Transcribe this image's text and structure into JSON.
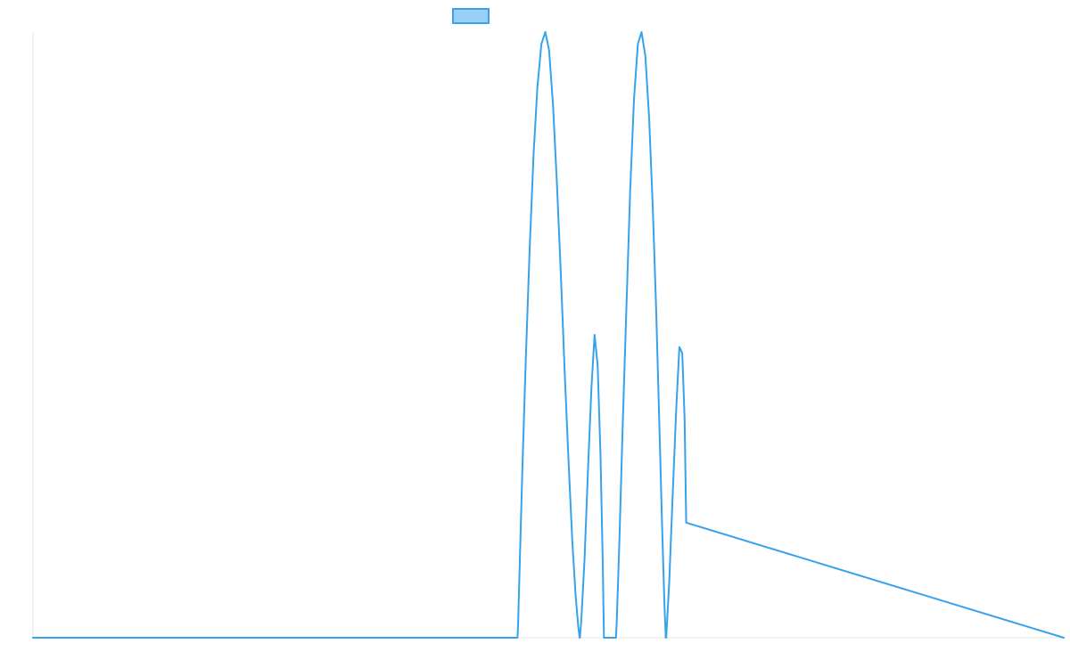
{
  "chart_data": {
    "type": "line",
    "title": "",
    "xlabel": "",
    "ylabel": "",
    "legend": {
      "placement": "top-center",
      "entries": [
        {
          "label": ""
        }
      ]
    },
    "grid": false,
    "xlim": [
      0,
      1000
    ],
    "ylim": [
      0,
      1
    ],
    "series": [
      {
        "color": "#36a2eb",
        "fill": "#9ad0f5",
        "x": [
          0,
          470,
          470.6,
          472.2,
          474.8,
          478.1,
          481.8,
          485.7,
          489.4,
          493.2,
          497.0,
          500.7,
          504.5,
          508.3,
          512.1,
          515.8,
          519.6,
          523.2,
          526.4,
          528.9,
          530.3,
          530.6,
          532.0,
          535.1,
          538.5,
          541.7,
          544.8,
          547.8,
          550.6,
          552.8,
          553.9,
          560,
          565.6,
          566.4,
          568.9,
          572.1,
          575.8,
          579.4,
          583.1,
          586.8,
          590.4,
          594.1,
          597.7,
          601.3,
          604.6,
          607.7,
          610.4,
          612.7,
          613.9,
          614.3,
          617.2,
          620.7,
          624.1,
          627.1,
          629.9,
          632.2,
          633.7,
          1000
        ],
        "y": [
          0,
          0,
          0.02,
          0.12,
          0.28,
          0.46,
          0.64,
          0.8,
          0.91,
          0.98,
          1.0,
          0.97,
          0.88,
          0.75,
          0.6,
          0.44,
          0.29,
          0.16,
          0.07,
          0.02,
          0.0,
          0.0,
          0.03,
          0.13,
          0.28,
          0.41,
          0.5,
          0.45,
          0.3,
          0.12,
          0.0,
          0,
          0.0,
          0.03,
          0.16,
          0.35,
          0.55,
          0.74,
          0.89,
          0.98,
          1.0,
          0.96,
          0.86,
          0.71,
          0.54,
          0.35,
          0.18,
          0.05,
          0.0,
          0.0,
          0.09,
          0.24,
          0.38,
          0.48,
          0.47,
          0.36,
          0.19,
          0
        ]
      }
    ]
  }
}
